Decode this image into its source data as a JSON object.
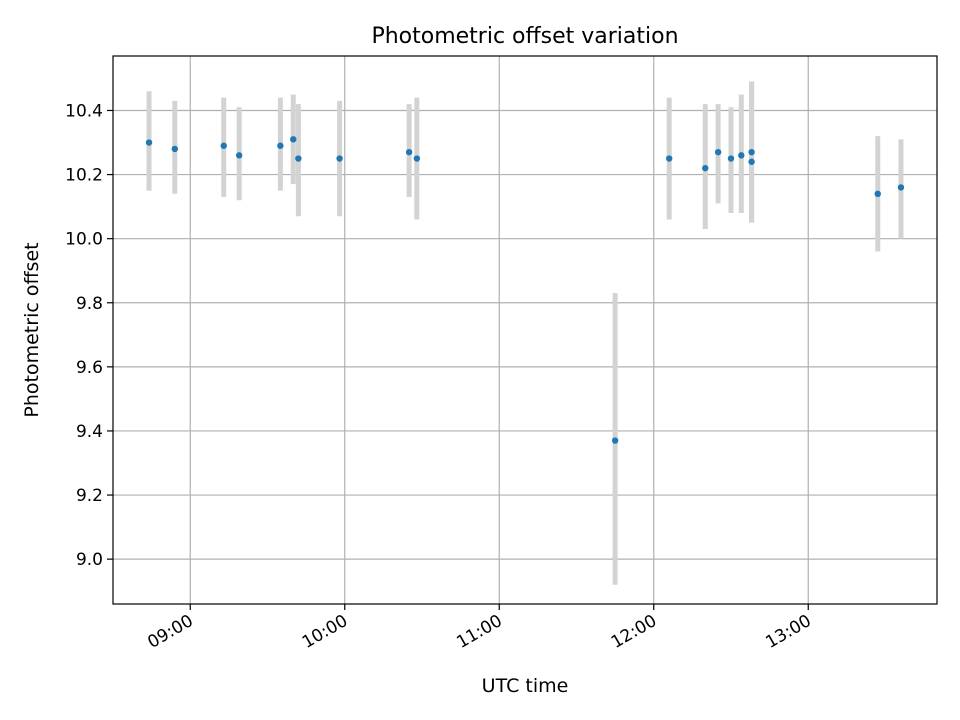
{
  "chart_data": {
    "type": "scatter",
    "title": "Photometric offset variation",
    "xlabel": "UTC time",
    "ylabel": "Photometric offset",
    "x_tick_labels": [
      "09:00",
      "10:00",
      "11:00",
      "12:00",
      "13:00"
    ],
    "x_ticks": [
      "09:00",
      "10:00",
      "11:00",
      "12:00",
      "13:00"
    ],
    "y_ticks": [
      9.0,
      9.2,
      9.4,
      9.6,
      9.8,
      10.0,
      10.2,
      10.4
    ],
    "y_tick_labels": [
      "9.0",
      "9.2",
      "9.4",
      "9.6",
      "9.8",
      "10.0",
      "10.2",
      "10.4"
    ],
    "xlim": [
      "08:30",
      "13:50"
    ],
    "ylim": [
      8.86,
      10.57
    ],
    "grid": true,
    "point_color": "#1f77b4",
    "errorbar_color": "#d3d3d3",
    "points": [
      {
        "x": "08:44",
        "y": 10.3,
        "yerr_low": 10.15,
        "yerr_high": 10.46
      },
      {
        "x": "08:54",
        "y": 10.28,
        "yerr_low": 10.14,
        "yerr_high": 10.43
      },
      {
        "x": "09:13",
        "y": 10.29,
        "yerr_low": 10.13,
        "yerr_high": 10.44
      },
      {
        "x": "09:19",
        "y": 10.26,
        "yerr_low": 10.12,
        "yerr_high": 10.41
      },
      {
        "x": "09:35",
        "y": 10.29,
        "yerr_low": 10.15,
        "yerr_high": 10.44
      },
      {
        "x": "09:40",
        "y": 10.31,
        "yerr_low": 10.17,
        "yerr_high": 10.45
      },
      {
        "x": "09:42",
        "y": 10.25,
        "yerr_low": 10.07,
        "yerr_high": 10.42
      },
      {
        "x": "09:58",
        "y": 10.25,
        "yerr_low": 10.07,
        "yerr_high": 10.43
      },
      {
        "x": "10:25",
        "y": 10.27,
        "yerr_low": 10.13,
        "yerr_high": 10.42
      },
      {
        "x": "10:28",
        "y": 10.25,
        "yerr_low": 10.06,
        "yerr_high": 10.44
      },
      {
        "x": "11:45",
        "y": 9.37,
        "yerr_low": 8.92,
        "yerr_high": 9.83
      },
      {
        "x": "12:06",
        "y": 10.25,
        "yerr_low": 10.06,
        "yerr_high": 10.44
      },
      {
        "x": "12:20",
        "y": 10.22,
        "yerr_low": 10.03,
        "yerr_high": 10.42
      },
      {
        "x": "12:25",
        "y": 10.27,
        "yerr_low": 10.11,
        "yerr_high": 10.42
      },
      {
        "x": "12:30",
        "y": 10.25,
        "yerr_low": 10.08,
        "yerr_high": 10.41
      },
      {
        "x": "12:34",
        "y": 10.26,
        "yerr_low": 10.08,
        "yerr_high": 10.45
      },
      {
        "x": "12:38",
        "y": 10.24,
        "yerr_low": 10.05,
        "yerr_high": 10.49
      },
      {
        "x": "12:38",
        "y": 10.27,
        "yerr_low": 10.05,
        "yerr_high": 10.49
      },
      {
        "x": "13:27",
        "y": 10.14,
        "yerr_low": 9.96,
        "yerr_high": 10.32
      },
      {
        "x": "13:36",
        "y": 10.16,
        "yerr_low": 10.0,
        "yerr_high": 10.31
      }
    ]
  }
}
